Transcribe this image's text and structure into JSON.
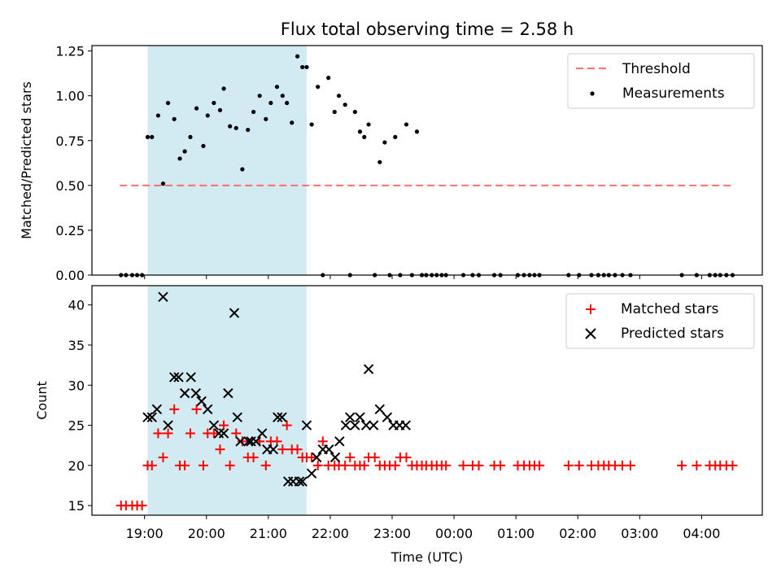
{
  "chart_data": [
    {
      "type": "scatter",
      "title": "Flux total observing time = 2.58 h",
      "xlabel": "",
      "ylabel": "Matched/Predicted stars",
      "ylim": [
        0,
        1.28
      ],
      "x_unit": "UTC hour offset from 00:00 of first night (negative = previous day)",
      "xlim": [
        -5.85,
        4.98
      ],
      "yticks": [
        0,
        0.25,
        0.5,
        0.75,
        1.0,
        1.25
      ],
      "ytick_labels": [
        "0.00",
        "0.25",
        "0.50",
        "0.75",
        "1.00",
        "1.25"
      ],
      "highlight_span": {
        "start": -4.95,
        "end": -2.38,
        "color": "#add8e6"
      },
      "threshold": {
        "name": "Threshold",
        "value": 0.5,
        "x": [
          -5.4,
          4.5
        ],
        "color": "#ff6f6f"
      },
      "series": [
        {
          "name": "Measurements",
          "color": "#000000",
          "x": [
            -5.38,
            -5.3,
            -5.2,
            -5.12,
            -5.04,
            -4.95,
            -4.88,
            -4.78,
            -4.7,
            -4.62,
            -4.52,
            -4.43,
            -4.35,
            -4.26,
            -4.16,
            -4.05,
            -3.98,
            -3.88,
            -3.78,
            -3.72,
            -3.62,
            -3.52,
            -3.42,
            -3.33,
            -3.24,
            -3.14,
            -3.04,
            -2.96,
            -2.86,
            -2.77,
            -2.7,
            -2.62,
            -2.53,
            -2.45,
            -2.38,
            -2.3,
            -2.2,
            -2.12,
            -2.03,
            -1.93,
            -1.86,
            -1.76,
            -1.68,
            -1.6,
            -1.52,
            -1.45,
            -1.38,
            -1.28,
            -1.2,
            -1.12,
            -1.04,
            -0.95,
            -0.87,
            -0.77,
            -0.68,
            -0.6,
            -0.52,
            -0.45,
            -0.36,
            -0.28,
            -0.2,
            -0.13,
            0.15,
            0.3,
            0.4,
            0.65,
            0.75,
            1.03,
            1.13,
            1.22,
            1.3,
            1.38,
            1.85,
            2.02,
            2.22,
            2.33,
            2.42,
            2.5,
            2.6,
            2.72,
            2.85,
            3.68,
            3.92,
            4.13,
            4.22,
            4.3,
            4.4,
            4.5
          ],
          "y": [
            0,
            0,
            0,
            0,
            0,
            0.77,
            0.77,
            0.89,
            0.51,
            0.96,
            0.87,
            0.65,
            0.69,
            0.77,
            0.93,
            0.72,
            0.89,
            0.96,
            0.92,
            1.04,
            0.83,
            0.82,
            0.59,
            0.81,
            0.91,
            1.0,
            0.87,
            0.96,
            1.05,
            1.0,
            0.96,
            0.85,
            1.22,
            1.16,
            1.16,
            0.84,
            1.05,
            0,
            1.1,
            0.91,
            1.0,
            0.95,
            0,
            0.91,
            0.8,
            0.77,
            0.84,
            0,
            0.63,
            0.74,
            0,
            0.77,
            0,
            0.84,
            0,
            0.8,
            0,
            0,
            0,
            0,
            0,
            0,
            0,
            0,
            0,
            0,
            0,
            0,
            0,
            0,
            0,
            0,
            0,
            0,
            0,
            0,
            0,
            0,
            0,
            0,
            0,
            0,
            0,
            0,
            0,
            0,
            0,
            0
          ]
        }
      ],
      "legend": [
        "Threshold",
        "Measurements"
      ],
      "legend_position": "top-right"
    },
    {
      "type": "scatter",
      "title": "",
      "xlabel": "Time (UTC)",
      "ylabel": "Count",
      "ylim": [
        13.8,
        42.4
      ],
      "xlim": [
        -5.85,
        4.98
      ],
      "yticks": [
        15,
        20,
        25,
        30,
        35,
        40
      ],
      "ytick_labels": [
        "15",
        "20",
        "25",
        "30",
        "35",
        "40"
      ],
      "xticks": [
        -5,
        -4,
        -3,
        -2,
        -1,
        0,
        1,
        2,
        3,
        4
      ],
      "xtick_labels": [
        "19:00",
        "20:00",
        "21:00",
        "22:00",
        "23:00",
        "00:00",
        "01:00",
        "02:00",
        "03:00",
        "04:00"
      ],
      "highlight_span": {
        "start": -4.95,
        "end": -2.38,
        "color": "#add8e6"
      },
      "series": [
        {
          "name": "Matched stars",
          "color": "#ff0000",
          "marker": "plus",
          "x": [
            -5.38,
            -5.3,
            -5.2,
            -5.12,
            -5.04,
            -4.95,
            -4.88,
            -4.78,
            -4.7,
            -4.62,
            -4.52,
            -4.43,
            -4.35,
            -4.26,
            -4.16,
            -4.05,
            -3.98,
            -3.88,
            -3.78,
            -3.72,
            -3.62,
            -3.52,
            -3.42,
            -3.33,
            -3.24,
            -3.14,
            -3.04,
            -2.96,
            -2.86,
            -2.77,
            -2.7,
            -2.62,
            -2.53,
            -2.45,
            -2.38,
            -2.3,
            -2.2,
            -2.12,
            -2.03,
            -1.93,
            -1.86,
            -1.76,
            -1.68,
            -1.6,
            -1.52,
            -1.45,
            -1.38,
            -1.28,
            -1.2,
            -1.12,
            -1.04,
            -0.95,
            -0.87,
            -0.77,
            -0.68,
            -0.6,
            -0.52,
            -0.45,
            -0.36,
            -0.28,
            -0.2,
            -0.13,
            0.15,
            0.3,
            0.4,
            0.65,
            0.75,
            1.03,
            1.13,
            1.22,
            1.3,
            1.38,
            1.85,
            2.02,
            2.22,
            2.33,
            2.42,
            2.5,
            2.6,
            2.72,
            2.85,
            3.68,
            3.92,
            4.13,
            4.22,
            4.3,
            4.4,
            4.5
          ],
          "y": [
            15,
            15,
            15,
            15,
            15,
            20,
            20,
            24,
            21,
            24,
            27,
            20,
            20,
            24,
            27,
            20,
            24,
            24,
            22,
            25,
            20,
            24,
            23,
            21,
            21,
            23,
            20,
            23,
            23,
            22,
            25,
            22,
            22,
            21,
            21,
            21,
            20,
            23,
            20,
            20,
            20,
            20,
            21,
            20,
            20,
            20,
            21,
            21,
            20,
            20,
            20,
            20,
            21,
            21,
            20,
            20,
            20,
            20,
            20,
            20,
            20,
            20,
            20,
            20,
            20,
            20,
            20,
            20,
            20,
            20,
            20,
            20,
            20,
            20,
            20,
            20,
            20,
            20,
            20,
            20,
            20,
            20,
            20,
            20,
            20,
            20,
            20,
            20
          ]
        },
        {
          "name": "Predicted stars",
          "color": "#000000",
          "marker": "x",
          "x": [
            -4.95,
            -4.88,
            -4.8,
            -4.7,
            -4.62,
            -4.52,
            -4.45,
            -4.35,
            -4.25,
            -4.17,
            -4.08,
            -3.98,
            -3.88,
            -3.8,
            -3.72,
            -3.65,
            -3.55,
            -3.5,
            -3.45,
            -3.32,
            -3.28,
            -3.2,
            -3.1,
            -3.02,
            -2.92,
            -2.85,
            -2.78,
            -2.68,
            -2.6,
            -2.5,
            -2.45,
            -2.38,
            -2.3,
            -2.22,
            -2.12,
            -2.02,
            -1.92,
            -1.85,
            -1.75,
            -1.68,
            -1.6,
            -1.52,
            -1.42,
            -1.38,
            -1.3,
            -1.2,
            -1.08,
            -0.98,
            -0.88,
            -0.78
          ],
          "y": [
            26,
            26,
            27,
            41,
            25,
            31,
            31,
            29,
            31,
            29,
            28,
            27,
            25,
            24,
            24,
            29,
            39,
            26,
            23,
            23,
            23,
            23,
            24,
            22,
            22,
            26,
            26,
            18,
            18,
            18,
            18,
            25,
            19,
            21,
            22,
            22,
            21,
            23,
            25,
            26,
            25,
            26,
            25,
            32,
            25,
            27,
            26,
            25,
            25,
            25
          ]
        }
      ],
      "legend": [
        "Matched stars",
        "Predicted stars"
      ],
      "legend_position": "top-right"
    }
  ]
}
